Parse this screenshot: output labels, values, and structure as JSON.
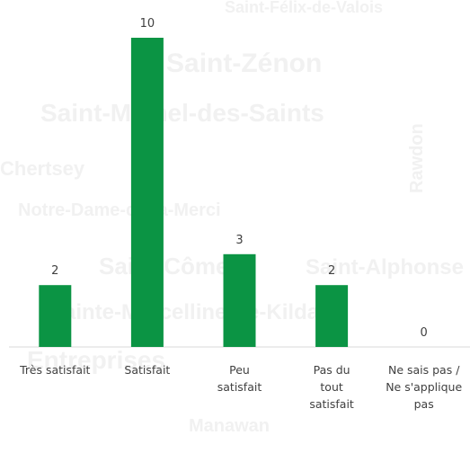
{
  "watermark": [
    "Saint-Félix-de-Valois",
    "Saint-Zénon",
    "Saint-Michel-des-Saints",
    "Chertsey",
    "Rawdon",
    "Notre-Dame-de-la-Merci",
    "Saint-Côme",
    "Saint-Alphonse",
    "Sainte-Marcelline-de-Kildare",
    "Entreprises",
    "Manawan"
  ],
  "chart_data": {
    "type": "bar",
    "categories": [
      "Très satisfait",
      "Satisfait",
      "Peu satisfait",
      "Pas du tout satisfait",
      "Ne sais pas / Ne s'applique pas"
    ],
    "values": [
      2,
      10,
      3,
      2,
      0
    ],
    "color": "#0b9444",
    "ylim": [
      0,
      10
    ]
  }
}
